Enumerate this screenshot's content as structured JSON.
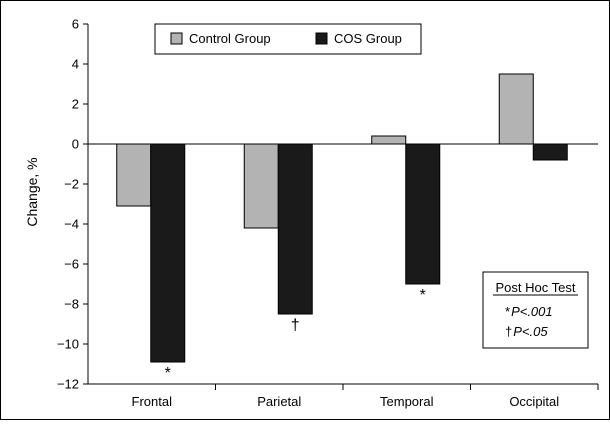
{
  "chart_data": {
    "type": "bar",
    "categories": [
      "Frontal",
      "Parietal",
      "Temporal",
      "Occipital"
    ],
    "series": [
      {
        "name": "Control Group",
        "values": [
          -3.1,
          -4.2,
          0.4,
          3.5
        ],
        "color": "#b3b3b3"
      },
      {
        "name": "COS Group",
        "values": [
          -10.9,
          -8.5,
          -7.0,
          -0.8
        ],
        "color": "#1a1a1a"
      }
    ],
    "title": "",
    "xlabel": "",
    "ylabel": "Change, %",
    "ylim": [
      -12,
      6
    ],
    "yticks": [
      6,
      4,
      2,
      0,
      -2,
      -4,
      -6,
      -8,
      -10,
      -12
    ],
    "grid": false,
    "legend_position": "top-center",
    "significance_markers": [
      {
        "category": "Frontal",
        "series": "COS Group",
        "symbol": "*"
      },
      {
        "category": "Parietal",
        "series": "COS Group",
        "symbol": "†"
      },
      {
        "category": "Temporal",
        "series": "COS Group",
        "symbol": "*"
      }
    ],
    "annotation_box": {
      "title": "Post Hoc Test",
      "lines": [
        {
          "symbol": "*",
          "text": "P<.001"
        },
        {
          "symbol": "†",
          "text": "P<.05"
        }
      ]
    }
  }
}
